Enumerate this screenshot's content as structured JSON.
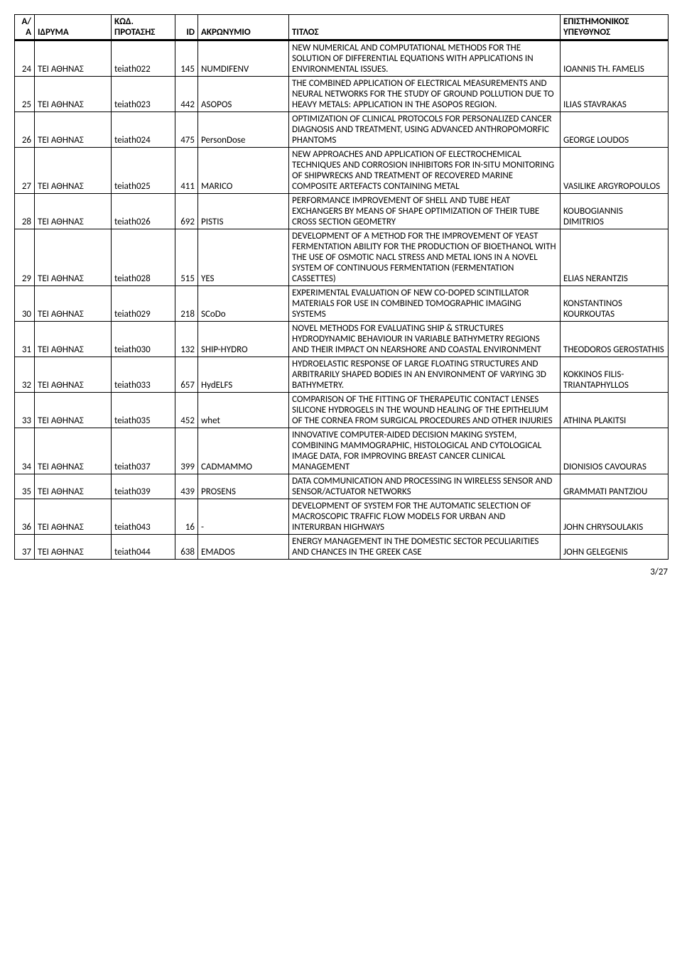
{
  "headers": {
    "aa": "Α/Α",
    "inst": "ΙΔΡΥΜΑ",
    "code": "ΚΩΔ. ΠΡΟΤΑΣΗΣ",
    "id": "ID",
    "acr": "ΑΚΡΩΝΥΜΙΟ",
    "title": "ΤΙΤΛΟΣ",
    "resp": "ΕΠΙΣΤΗΜΟΝΙΚΟΣ ΥΠΕΥΘΥΝΟΣ"
  },
  "rows": [
    {
      "aa": "24",
      "inst": "ΤΕΙ ΑΘΗΝΑΣ",
      "code": "teiath022",
      "id": "145",
      "acr": "NUMDIFENV",
      "title": " NEW NUMERICAL AND COMPUTATIONAL METHODS FOR THE SOLUTION OF DIFFERENTIAL EQUATIONS WITH APPLICATIONS IN ENVIRONMENTAL ISSUES.",
      "resp": "IOANNIS TH. FAMELIS"
    },
    {
      "aa": "25",
      "inst": "ΤΕΙ ΑΘΗΝΑΣ",
      "code": "teiath023",
      "id": "442",
      "acr": "ASOPOS",
      "title": " THE COMBINED APPLICATION OF ELECTRICAL MEASUREMENTS AND NEURAL NETWORKS FOR THE STUDY OF GROUND POLLUTION DUE TO HEAVY METALS: APPLICATION IN THE ASOPOS REGION.",
      "resp": "ILIAS STAVRAKAS"
    },
    {
      "aa": "26",
      "inst": "ΤΕΙ ΑΘΗΝΑΣ",
      "code": "teiath024",
      "id": "475",
      "acr": "PersonDose",
      "title": " OPTIMIZATION OF CLINICAL PROTOCOLS FOR PERSONALIZED CANCER DIAGNOSIS AND TREATMENT, USING ADVANCED ANTHROPOMORFIC PHANTOMS",
      "resp": "GEORGE LOUDOS"
    },
    {
      "aa": "27",
      "inst": "ΤΕΙ ΑΘΗΝΑΣ",
      "code": "teiath025",
      "id": "411",
      "acr": "MARICO",
      "title": " NEW APPROACHES AND APPLICATION OF ELECTROCHEMICAL TECHNIQUES AND CORROSION INHIBITORS FOR IN-SITU MONITORING OF SHIPWRECKS AND TREATMENT OF RECOVERED MARINE COMPOSITE ARTEFACTS CONTAINING METAL",
      "resp": " VASILIKE ARGYROPOULOS"
    },
    {
      "aa": "28",
      "inst": "ΤΕΙ ΑΘΗΝΑΣ",
      "code": "teiath026",
      "id": "692",
      "acr": "PISTIS",
      "title": " PERFORMANCE IMPROVEMENT OF SHELL AND TUBE HEAT EXCHANGERS BY MEANS OF SHAPE OPTIMIZATION OF THEIR TUBE CROSS SECTION GEOMETRY",
      "resp": "KOUBOGIANNIS DIMITRIOS"
    },
    {
      "aa": "29",
      "inst": "ΤΕΙ ΑΘΗΝΑΣ",
      "code": "teiath028",
      "id": "515",
      "acr": "YES",
      "title": " DEVELOPMENT OF A METHOD FOR THE IMPROVEMENT OF YEAST FERMENTATION ABILITY FOR THE PRODUCTION OF BIOETHANOL WITH THE USE OF OSMOTIC NACL STRESS AND METAL IONS IN A NOVEL SYSTEM OF CONTINUOUS  FERMENTATION (FERMENTATION CASSETTES)",
      "resp": "ELIAS NERANTZIS"
    },
    {
      "aa": "30",
      "inst": "ΤΕΙ ΑΘΗΝΑΣ",
      "code": "teiath029",
      "id": "218",
      "acr": "SCoDo",
      "title": " EXPERIMENTAL EVALUATION OF NEW CO-DOPED SCINTILLATOR  MATERIALS FOR USE IN COMBINED TOMOGRAPHIC IMAGING SYSTEMS",
      "resp": " KONSTANTINOS KOURKOUTAS"
    },
    {
      "aa": "31",
      "inst": "ΤΕΙ ΑΘΗΝΑΣ",
      "code": "teiath030",
      "id": "132",
      "acr": "SHIP-HYDRO",
      "title": " NOVEL METHODS FOR EVALUATING SHIP & STRUCTURES HYDRODYNAMIC BEHAVIOUR IN VARIABLE BATHYMETRY REGIONS AND THEIR IMPACT ON NEARSHORE AND COASTAL ENVIRONMENT",
      "resp": " THEODOROS GEROSTATHIS"
    },
    {
      "aa": "32",
      "inst": "ΤΕΙ ΑΘΗΝΑΣ",
      "code": "teiath033",
      "id": "657",
      "acr": "HydELFS",
      "title": " HYDROELASTIC RESPONSE OF LARGE FLOATING STRUCTURES AND ARBITRARILY SHAPED BODIES IN AN ENVIRONMENT OF VARYING 3D BATHYMETRY.",
      "resp": "KOKKINOS FILIS-TRIANTAPHYLLOS"
    },
    {
      "aa": "33",
      "inst": "ΤΕΙ ΑΘΗΝΑΣ",
      "code": "teiath035",
      "id": "452",
      "acr": "whet",
      "title": " COMPARISON OF THE FITTING OF THERAPEUTIC CONTACT LENSES SILICONE HYDROGELS IN THE WOUND HEALING OF  THE EPITHELIUM OF THE CORNEA FROM SURGICAL PROCEDURES  AND OTHER INJURIES",
      "resp": "ATHINA PLAKITSI"
    },
    {
      "aa": "34",
      "inst": "ΤΕΙ ΑΘΗΝΑΣ",
      "code": "teiath037",
      "id": "399",
      "acr": "CADMAMMO",
      "title": " INNOVATIVE COMPUTER-AIDED DECISION MAKING SYSTEM, COMBINING MAMMOGRAPHIC, HISTOLOGICAL AND CYTOLOGICAL IMAGE DATA, FOR IMPROVING BREAST CANCER CLINICAL MANAGEMENT",
      "resp": "DIONISIOS CAVOURAS"
    },
    {
      "aa": "35",
      "inst": "ΤΕΙ ΑΘΗΝΑΣ",
      "code": "teiath039",
      "id": "439",
      "acr": "PROSENS",
      "title": " DATA COMMUNICATION AND PROCESSING IN WIRELESS SENSOR AND SENSOR/ACTUATOR NETWORKS",
      "resp": "GRAMMATI PANTZIOU"
    },
    {
      "aa": "36",
      "inst": "ΤΕΙ ΑΘΗΝΑΣ",
      "code": "teiath043",
      "id": "16",
      "acr": "-",
      "title": " DEVELOPMENT OF SYSTEM FOR THE AUTOMATIC SELECTION OF MACROSCOPIC TRAFFIC FLOW MODELS FOR URBAN AND INTERURBAN HIGHWAYS",
      "resp": "JOHN CHRYSOULAKIS"
    },
    {
      "aa": "37",
      "inst": "ΤΕΙ ΑΘΗΝΑΣ",
      "code": "teiath044",
      "id": "638",
      "acr": "EMADOS",
      "title": " ENERGY MANAGEMENT IN THE DOMESTIC SECTOR PECULIARITIES AND CHANCES IN THE GREEK CASE",
      "resp": "JOHN GELEGENIS"
    }
  ],
  "page": "3/27"
}
